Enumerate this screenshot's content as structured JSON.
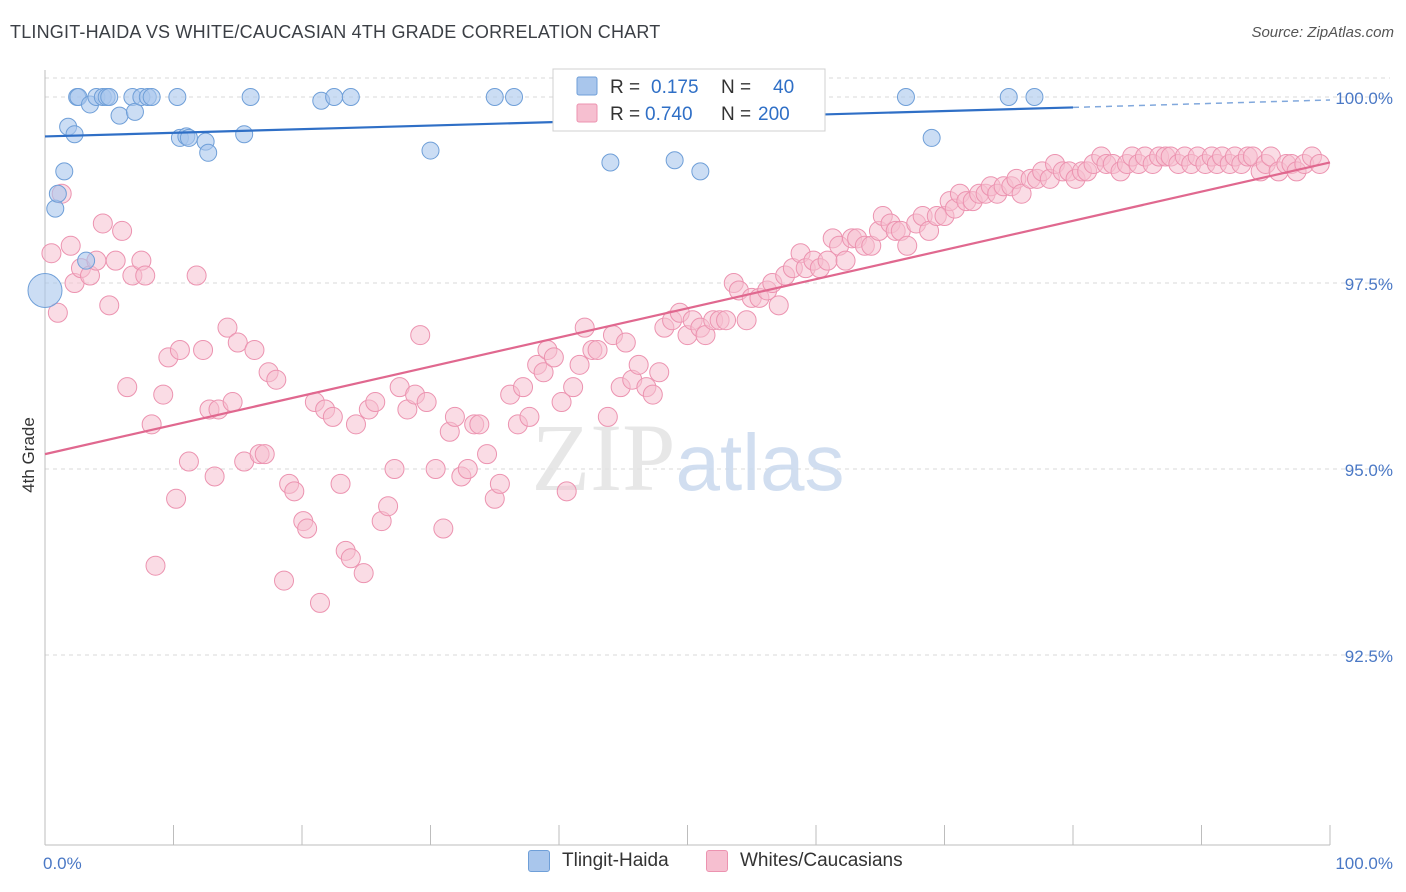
{
  "header": {
    "title": "TLINGIT-HAIDA VS WHITE/CAUCASIAN 4TH GRADE CORRELATION CHART",
    "source": "Source: ZipAtlas.com"
  },
  "watermark": {
    "part1": "ZIP",
    "part2": "atlas"
  },
  "colors": {
    "blue_fill": "#a9c6ec",
    "blue_stroke": "#6f9fd8",
    "blue_line": "#2f6fc6",
    "pink_fill": "#f6bfd0",
    "pink_stroke": "#ec93b0",
    "pink_line": "#e0688f",
    "tick_label": "#4a78c5",
    "grid": "#d9d9d9"
  },
  "stats_legend": [
    {
      "r_label": "R =",
      "r_value": "0.175",
      "n_label": "N =",
      "n_value": "40"
    },
    {
      "r_label": "R =",
      "r_value": "0.740",
      "n_label": "N =",
      "n_value": "200"
    }
  ],
  "bottom_legend": [
    "Tlingit-Haida",
    "Whites/Caucasians"
  ],
  "chart_data": {
    "type": "scatter",
    "title": "TLINGIT-HAIDA VS WHITE/CAUCASIAN 4TH GRADE CORRELATION CHART",
    "xlabel": "",
    "ylabel": "4th Grade",
    "xlim": [
      0,
      100
    ],
    "ylim": [
      90.0,
      100.3
    ],
    "x_tick_labels": [
      "0.0%",
      "100.0%"
    ],
    "y_ticks": [
      92.5,
      95.0,
      97.5,
      100.0
    ],
    "y_tick_labels": [
      "92.5%",
      "95.0%",
      "97.5%",
      "100.0%"
    ],
    "grid": true,
    "series": [
      {
        "name": "Tlingit-Haida",
        "r": 0.175,
        "n": 40,
        "trend": {
          "x": [
            0,
            80
          ],
          "y": [
            99.47,
            99.86
          ],
          "dashed_to": [
            100,
            99.96
          ]
        },
        "points": [
          [
            0,
            97.4,
            2
          ],
          [
            0.8,
            98.5,
            1
          ],
          [
            1,
            98.7,
            1
          ],
          [
            1.5,
            99.0,
            1
          ],
          [
            1.8,
            99.6,
            1
          ],
          [
            2.3,
            99.5,
            1
          ],
          [
            2.5,
            100.0,
            1
          ],
          [
            2.6,
            100.0,
            1
          ],
          [
            3.2,
            97.8,
            1
          ],
          [
            3.5,
            99.9,
            1
          ],
          [
            4,
            100.0,
            1
          ],
          [
            4.5,
            100.0,
            1
          ],
          [
            4.8,
            100.0,
            1
          ],
          [
            5,
            100.0,
            1
          ],
          [
            5.8,
            99.75,
            1
          ],
          [
            6.8,
            100.0,
            1
          ],
          [
            7,
            99.8,
            1
          ],
          [
            7.5,
            100.0,
            1
          ],
          [
            8,
            100.0,
            1
          ],
          [
            8.3,
            100.0,
            1
          ],
          [
            10.3,
            100.0,
            1
          ],
          [
            10.5,
            99.45,
            1
          ],
          [
            11,
            99.47,
            1
          ],
          [
            11.2,
            99.45,
            1
          ],
          [
            12.5,
            99.4,
            1
          ],
          [
            12.7,
            99.25,
            1
          ],
          [
            15.5,
            99.5,
            1
          ],
          [
            16,
            100.0,
            1
          ],
          [
            21.5,
            99.95,
            1
          ],
          [
            22.5,
            100.0,
            1
          ],
          [
            23.8,
            100.0,
            1
          ],
          [
            30,
            99.28,
            1
          ],
          [
            35,
            100.0,
            1
          ],
          [
            36.5,
            100.0,
            1
          ],
          [
            44,
            99.12,
            1
          ],
          [
            49,
            99.15,
            1
          ],
          [
            51,
            99.0,
            1
          ],
          [
            67,
            100.0,
            1
          ],
          [
            69,
            99.45,
            1
          ],
          [
            75,
            100.0,
            1
          ],
          [
            77,
            100.0,
            1
          ]
        ]
      },
      {
        "name": "Whites/Caucasians",
        "r": 0.74,
        "n": 200,
        "trend": {
          "x": [
            0,
            100
          ],
          "y": [
            95.2,
            99.12
          ]
        },
        "points": [
          [
            0.5,
            97.9
          ],
          [
            1,
            97.1
          ],
          [
            1.3,
            98.7
          ],
          [
            2,
            98.0
          ],
          [
            2.3,
            97.5
          ],
          [
            2.8,
            97.7
          ],
          [
            3.5,
            97.6
          ],
          [
            4,
            97.8
          ],
          [
            4.5,
            98.3
          ],
          [
            5,
            97.2
          ],
          [
            5.5,
            97.8
          ],
          [
            6,
            98.2
          ],
          [
            6.4,
            96.1
          ],
          [
            6.8,
            97.6
          ],
          [
            7.5,
            97.8
          ],
          [
            7.8,
            97.6
          ],
          [
            8.3,
            95.6
          ],
          [
            8.6,
            93.7
          ],
          [
            9.2,
            96.0
          ],
          [
            9.6,
            96.5
          ],
          [
            10.2,
            94.6
          ],
          [
            10.5,
            96.6
          ],
          [
            11.2,
            95.1
          ],
          [
            11.8,
            97.6
          ],
          [
            12.3,
            96.6
          ],
          [
            12.8,
            95.8
          ],
          [
            13.2,
            94.9
          ],
          [
            13.5,
            95.8
          ],
          [
            14.2,
            96.9
          ],
          [
            14.6,
            95.9
          ],
          [
            15,
            96.7
          ],
          [
            15.5,
            95.1
          ],
          [
            16.3,
            96.6
          ],
          [
            16.7,
            95.2
          ],
          [
            17.1,
            95.2
          ],
          [
            17.4,
            96.3
          ],
          [
            18,
            96.2
          ],
          [
            18.6,
            93.5
          ],
          [
            19,
            94.8
          ],
          [
            19.4,
            94.7
          ],
          [
            20.1,
            94.3
          ],
          [
            20.4,
            94.2
          ],
          [
            21,
            95.9
          ],
          [
            21.4,
            93.2
          ],
          [
            21.8,
            95.8
          ],
          [
            22.4,
            95.7
          ],
          [
            23,
            94.8
          ],
          [
            23.4,
            93.9
          ],
          [
            23.8,
            93.8
          ],
          [
            24.2,
            95.6
          ],
          [
            24.8,
            93.6
          ],
          [
            25.2,
            95.8
          ],
          [
            25.7,
            95.9
          ],
          [
            26.2,
            94.3
          ],
          [
            26.7,
            94.5
          ],
          [
            27.2,
            95.0
          ],
          [
            27.6,
            96.1
          ],
          [
            28.2,
            95.8
          ],
          [
            28.8,
            96.0
          ],
          [
            29.2,
            96.8
          ],
          [
            29.7,
            95.9
          ],
          [
            30.4,
            95.0
          ],
          [
            31,
            94.2
          ],
          [
            31.5,
            95.5
          ],
          [
            31.9,
            95.7
          ],
          [
            32.4,
            94.9
          ],
          [
            32.9,
            95.0
          ],
          [
            33.4,
            95.6
          ],
          [
            33.8,
            95.6
          ],
          [
            34.4,
            95.2
          ],
          [
            35,
            94.6
          ],
          [
            35.4,
            94.8
          ],
          [
            36.2,
            96.0
          ],
          [
            36.8,
            95.6
          ],
          [
            37.2,
            96.1
          ],
          [
            37.7,
            95.7
          ],
          [
            38.3,
            96.4
          ],
          [
            38.8,
            96.3
          ],
          [
            39.1,
            96.6
          ],
          [
            39.6,
            96.5
          ],
          [
            40.2,
            95.9
          ],
          [
            40.6,
            94.7
          ],
          [
            41.1,
            96.1
          ],
          [
            41.6,
            96.4
          ],
          [
            42,
            96.9
          ],
          [
            42.6,
            96.6
          ],
          [
            43,
            96.6
          ],
          [
            43.8,
            95.7
          ],
          [
            44.2,
            96.8
          ],
          [
            44.8,
            96.1
          ],
          [
            45.2,
            96.7
          ],
          [
            45.7,
            96.2
          ],
          [
            46.2,
            96.4
          ],
          [
            46.8,
            96.1
          ],
          [
            47.3,
            96.0
          ],
          [
            47.8,
            96.3
          ],
          [
            48.2,
            96.9
          ],
          [
            48.8,
            97.0
          ],
          [
            49.4,
            97.1
          ],
          [
            50,
            96.8
          ],
          [
            50.4,
            97.0
          ],
          [
            51,
            96.9
          ],
          [
            51.4,
            96.8
          ],
          [
            52,
            97.0
          ],
          [
            52.5,
            97.0
          ],
          [
            53,
            97.0
          ],
          [
            53.6,
            97.5
          ],
          [
            54,
            97.4
          ],
          [
            54.6,
            97.0
          ],
          [
            55,
            97.3
          ],
          [
            55.6,
            97.3
          ],
          [
            56.2,
            97.4
          ],
          [
            56.6,
            97.5
          ],
          [
            57.1,
            97.2
          ],
          [
            57.6,
            97.6
          ],
          [
            58.2,
            97.7
          ],
          [
            58.8,
            97.9
          ],
          [
            59.2,
            97.7
          ],
          [
            59.8,
            97.8
          ],
          [
            60.3,
            97.7
          ],
          [
            60.9,
            97.8
          ],
          [
            61.3,
            98.1
          ],
          [
            61.8,
            98.0
          ],
          [
            62.3,
            97.8
          ],
          [
            62.8,
            98.1
          ],
          [
            63.2,
            98.1
          ],
          [
            63.8,
            98.0
          ],
          [
            64.3,
            98.0
          ],
          [
            64.9,
            98.2
          ],
          [
            65.2,
            98.4
          ],
          [
            65.8,
            98.3
          ],
          [
            66.2,
            98.2
          ],
          [
            66.6,
            98.2
          ],
          [
            67.1,
            98.0
          ],
          [
            67.8,
            98.3
          ],
          [
            68.3,
            98.4
          ],
          [
            68.8,
            98.2
          ],
          [
            69.4,
            98.4
          ],
          [
            70,
            98.4
          ],
          [
            70.4,
            98.6
          ],
          [
            70.8,
            98.5
          ],
          [
            71.2,
            98.7
          ],
          [
            71.7,
            98.6
          ],
          [
            72.2,
            98.6
          ],
          [
            72.7,
            98.7
          ],
          [
            73.2,
            98.7
          ],
          [
            73.6,
            98.8
          ],
          [
            74.1,
            98.7
          ],
          [
            74.6,
            98.8
          ],
          [
            75.2,
            98.8
          ],
          [
            75.6,
            98.9
          ],
          [
            76,
            98.7
          ],
          [
            76.7,
            98.9
          ],
          [
            77.2,
            98.9
          ],
          [
            77.6,
            99.0
          ],
          [
            78.2,
            98.9
          ],
          [
            78.6,
            99.1
          ],
          [
            79.2,
            99.0
          ],
          [
            79.7,
            99.0
          ],
          [
            80.2,
            98.9
          ],
          [
            80.7,
            99.0
          ],
          [
            81.1,
            99.0
          ],
          [
            81.6,
            99.1
          ],
          [
            82.2,
            99.2
          ],
          [
            82.6,
            99.1
          ],
          [
            83.1,
            99.1
          ],
          [
            83.7,
            99.0
          ],
          [
            84.2,
            99.1
          ],
          [
            84.6,
            99.2
          ],
          [
            85.1,
            99.1
          ],
          [
            85.6,
            99.2
          ],
          [
            86.2,
            99.1
          ],
          [
            86.7,
            99.2
          ],
          [
            87.2,
            99.2
          ],
          [
            87.6,
            99.2
          ],
          [
            88.2,
            99.1
          ],
          [
            88.7,
            99.2
          ],
          [
            89.2,
            99.1
          ],
          [
            89.7,
            99.2
          ],
          [
            90.3,
            99.1
          ],
          [
            90.8,
            99.2
          ],
          [
            91.2,
            99.1
          ],
          [
            91.6,
            99.2
          ],
          [
            92.2,
            99.1
          ],
          [
            92.6,
            99.2
          ],
          [
            93.1,
            99.1
          ],
          [
            93.6,
            99.2
          ],
          [
            94,
            99.2
          ],
          [
            94.6,
            99.0
          ],
          [
            95,
            99.1
          ],
          [
            95.4,
            99.2
          ],
          [
            96,
            99.0
          ],
          [
            96.6,
            99.1
          ],
          [
            97,
            99.1
          ],
          [
            97.4,
            99.0
          ],
          [
            98,
            99.1
          ],
          [
            98.6,
            99.2
          ],
          [
            99.2,
            99.1
          ]
        ]
      }
    ]
  }
}
